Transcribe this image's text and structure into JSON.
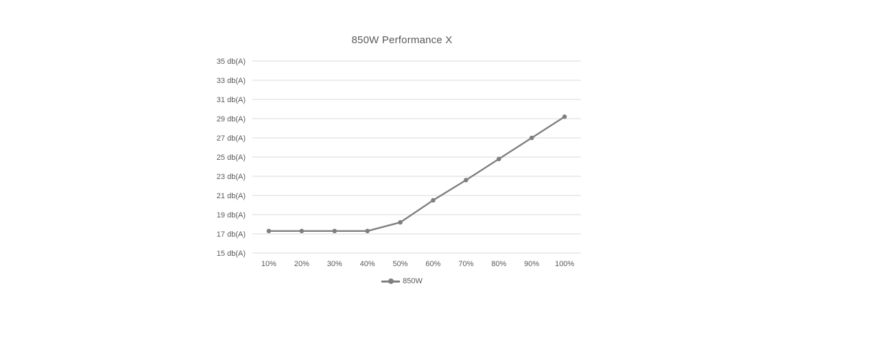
{
  "page": {
    "background": "#ffffff"
  },
  "chart_data": {
    "type": "line",
    "title": "850W Performance X",
    "categories": [
      "10%",
      "20%",
      "30%",
      "40%",
      "50%",
      "60%",
      "70%",
      "80%",
      "90%",
      "100%"
    ],
    "series": [
      {
        "name": "850W",
        "values": [
          17.3,
          17.3,
          17.3,
          17.3,
          18.2,
          20.5,
          22.6,
          24.8,
          27.0,
          29.2
        ],
        "color": "#7f7f7f"
      }
    ],
    "xlabel": "",
    "ylabel": "",
    "y_axis": {
      "min": 15,
      "max": 35,
      "step": 2,
      "tick_labels": [
        "15 db(A)",
        "17 db(A)",
        "19 db(A)",
        "21 db(A)",
        "23 db(A)",
        "25 db(A)",
        "27 db(A)",
        "29 db(A)",
        "31 db(A)",
        "33 db(A)",
        "35 db(A)"
      ]
    },
    "legend": {
      "position": "bottom",
      "entries": [
        "850W"
      ]
    },
    "grid": true,
    "colors": {
      "series": "#7f7f7f",
      "gridline": "#d9d9d9",
      "text": "#595959"
    }
  }
}
